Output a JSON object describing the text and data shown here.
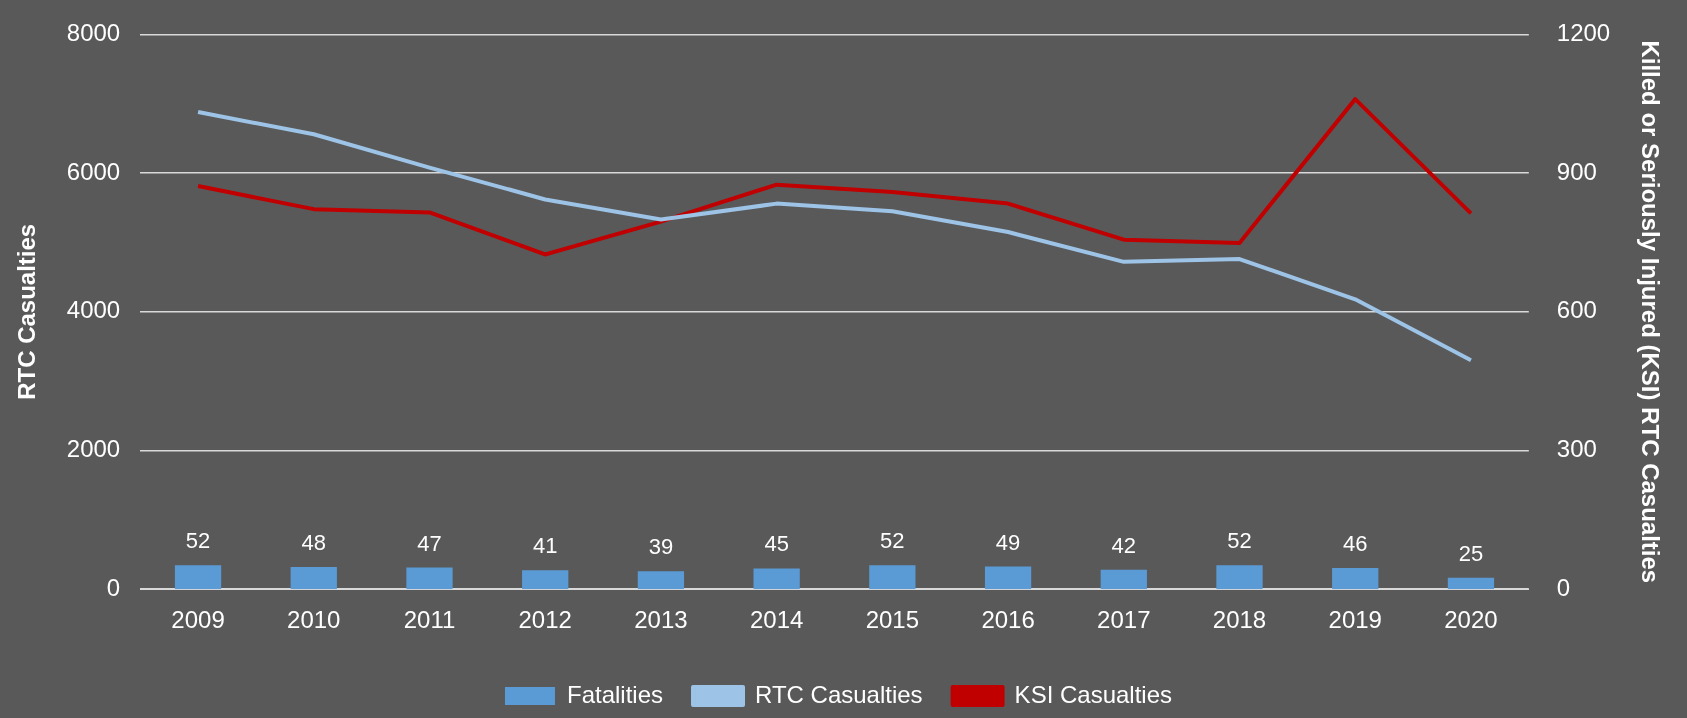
{
  "chart_data": {
    "type": "bar",
    "ylabel": "RTC Casualties",
    "y2label": "Killed or Seriously Injured (KSI) RTC Casualties",
    "categories": [
      "2009",
      "2010",
      "2011",
      "2012",
      "2013",
      "2014",
      "2015",
      "2016",
      "2017",
      "2018",
      "2019",
      "2020"
    ],
    "series": [
      {
        "name": "Fatalities",
        "axis": "y2",
        "color": "#5b9bd5",
        "values": [
          52,
          48,
          47,
          41,
          39,
          45,
          52,
          49,
          42,
          52,
          46,
          25
        ],
        "value_labels": [
          "52",
          "48",
          "47",
          "41",
          "39",
          "45",
          "52",
          "49",
          "42",
          "52",
          "46",
          "25"
        ]
      },
      {
        "name": "RTC Casualties",
        "type": "line",
        "color": "#9dc3e6",
        "values": [
          6880,
          6560,
          6080,
          5620,
          5330,
          5560,
          5450,
          5150,
          4720,
          4760,
          4180,
          3300
        ]
      },
      {
        "name": "KSI Casualties",
        "type": "line",
        "axis": "y2",
        "color": "#c00000",
        "values": [
          872,
          822,
          815,
          724,
          795,
          875,
          859,
          834,
          756,
          749,
          1060,
          813
        ]
      }
    ],
    "ylim": [
      0,
      8000
    ],
    "yticks": [
      0,
      2000,
      4000,
      6000,
      8000
    ],
    "y2lim": [
      0,
      1200
    ],
    "y2ticks": [
      0,
      300,
      600,
      900,
      1200
    ],
    "grid": "y",
    "legend": "bottom",
    "marker": "none",
    "line_style": "solid"
  }
}
